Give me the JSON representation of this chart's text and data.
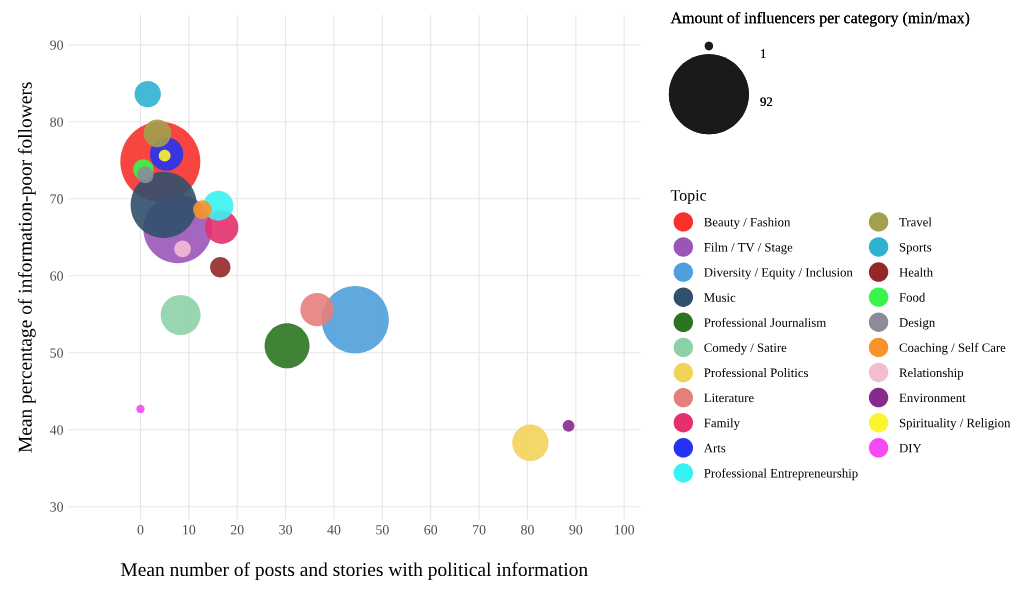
{
  "chart_data": {
    "type": "bubble",
    "xlabel": "Mean number of posts and stories with political information",
    "ylabel": "Mean percentage of information-poor followers",
    "legend_title": "Topic",
    "annotations": [
      "Amount of influencers per category (min/max)"
    ],
    "size_legend": [
      1,
      92
    ],
    "xlim": [
      -14.9,
      103.3
    ],
    "ylim": [
      28.3,
      93.9
    ],
    "xticks": [
      0,
      10,
      20,
      30,
      40,
      50,
      60,
      70,
      80,
      90,
      100
    ],
    "yticks": [
      30,
      40,
      50,
      60,
      70,
      80,
      90
    ],
    "grid": true,
    "legend": "right",
    "marker": "circle",
    "series": [
      {
        "name": "Beauty / Fashion",
        "color": "#f8312a",
        "x": [
          4.1
        ],
        "values": [
          74.8
        ],
        "sizes": [
          92
        ]
      },
      {
        "name": "Film / TV / Stage",
        "color": "#9a55b8",
        "x": [
          7.7
        ],
        "values": [
          66.1
        ],
        "sizes": [
          68
        ]
      },
      {
        "name": "Diversity / Equity / Inclusion",
        "color": "#4ea0dc",
        "x": [
          44.4
        ],
        "values": [
          54.3
        ],
        "sizes": [
          65
        ]
      },
      {
        "name": "Music",
        "color": "#31506c",
        "x": [
          4.8
        ],
        "values": [
          69.2
        ],
        "sizes": [
          63
        ]
      },
      {
        "name": "Professional Journalism",
        "color": "#2b7420",
        "x": [
          30.3
        ],
        "values": [
          50.9
        ],
        "sizes": [
          29
        ]
      },
      {
        "name": "Comedy / Satire",
        "color": "#8cd2a8",
        "x": [
          8.3
        ],
        "values": [
          54.9
        ],
        "sizes": [
          23
        ]
      },
      {
        "name": "Professional Politics",
        "color": "#f2d35a",
        "x": [
          80.6
        ],
        "values": [
          38.3
        ],
        "sizes": [
          19
        ]
      },
      {
        "name": "Literature",
        "color": "#e57f7d",
        "x": [
          36.5
        ],
        "values": [
          55.6
        ],
        "sizes": [
          16
        ]
      },
      {
        "name": "Family",
        "color": "#e6306e",
        "x": [
          16.8
        ],
        "values": [
          66.3
        ],
        "sizes": [
          16
        ]
      },
      {
        "name": "Arts",
        "color": "#2434f2",
        "x": [
          5.4
        ],
        "values": [
          75.8
        ],
        "sizes": [
          16
        ]
      },
      {
        "name": "Professional Entrepreneurship",
        "color": "#37f2f2",
        "x": [
          16.1
        ],
        "values": [
          69.1
        ],
        "sizes": [
          13
        ]
      },
      {
        "name": "Travel",
        "color": "#a2a04c",
        "x": [
          3.5
        ],
        "values": [
          78.5
        ],
        "sizes": [
          11
        ]
      },
      {
        "name": "Sports",
        "color": "#2eb2d2",
        "x": [
          1.5
        ],
        "values": [
          83.6
        ],
        "sizes": [
          10
        ]
      },
      {
        "name": "Health",
        "color": "#952727",
        "x": [
          16.5
        ],
        "values": [
          61.1
        ],
        "sizes": [
          6
        ]
      },
      {
        "name": "Food",
        "color": "#38f44c",
        "x": [
          0.6
        ],
        "values": [
          73.8
        ],
        "sizes": [
          6
        ]
      },
      {
        "name": "Design",
        "color": "#8a8c9a",
        "x": [
          1.0
        ],
        "values": [
          73.1
        ],
        "sizes": [
          4
        ]
      },
      {
        "name": "Coaching / Self Care",
        "color": "#f8922a",
        "x": [
          12.8
        ],
        "values": [
          68.6
        ],
        "sizes": [
          5
        ]
      },
      {
        "name": "Relationship",
        "color": "#f4bcd2",
        "x": [
          8.7
        ],
        "values": [
          63.5
        ],
        "sizes": [
          4
        ]
      },
      {
        "name": "Environment",
        "color": "#882a8c",
        "x": [
          88.5
        ],
        "values": [
          40.5
        ],
        "sizes": [
          2
        ]
      },
      {
        "name": "Spirituality / Religion",
        "color": "#faf52c",
        "x": [
          5.0
        ],
        "values": [
          75.6
        ],
        "sizes": [
          2
        ]
      },
      {
        "name": "DIY",
        "color": "#f649f4",
        "x": [
          0.0
        ],
        "values": [
          42.7
        ],
        "sizes": [
          1
        ]
      }
    ]
  }
}
